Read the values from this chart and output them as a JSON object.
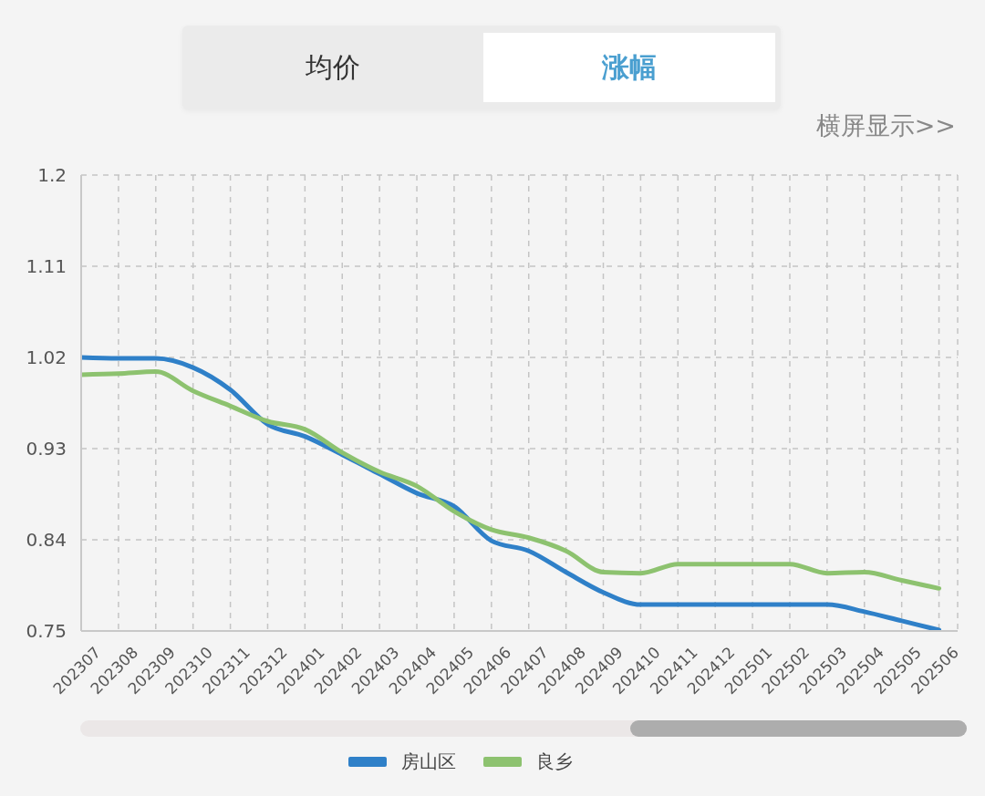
{
  "chart_data": {
    "type": "line",
    "categories": [
      "202307",
      "202308",
      "202309",
      "202310",
      "202311",
      "202312",
      "202401",
      "202402",
      "202403",
      "202404",
      "202405",
      "202406",
      "202407",
      "202408",
      "202409",
      "202410",
      "202411",
      "202412",
      "202501",
      "202502",
      "202503",
      "202504",
      "202505",
      "202506"
    ],
    "series": [
      {
        "name": "房山区",
        "color": "#2f80c8",
        "values": [
          1.02,
          1.019,
          1.019,
          1.01,
          0.988,
          0.954,
          0.942,
          0.924,
          0.905,
          0.886,
          0.873,
          0.839,
          0.829,
          0.808,
          0.788,
          0.776,
          0.776,
          0.776,
          0.776,
          0.776,
          0.776,
          0.769,
          0.76,
          0.751
        ]
      },
      {
        "name": "良乡",
        "color": "#8dc26f",
        "values": [
          1.003,
          1.004,
          1.006,
          0.987,
          0.972,
          0.957,
          0.949,
          0.926,
          0.907,
          0.893,
          0.868,
          0.85,
          0.842,
          0.829,
          0.808,
          0.807,
          0.816,
          0.816,
          0.816,
          0.816,
          0.807,
          0.808,
          0.8,
          0.792
        ]
      }
    ],
    "ylim": [
      0.75,
      1.2
    ],
    "yticks": [
      0.75,
      0.84,
      0.93,
      1.02,
      1.11,
      1.2
    ],
    "grid": true,
    "legend": "bottom",
    "marker": "none",
    "line_style": "solid",
    "annotations": [
      "均价",
      "涨幅",
      "横屏显示>>"
    ]
  }
}
